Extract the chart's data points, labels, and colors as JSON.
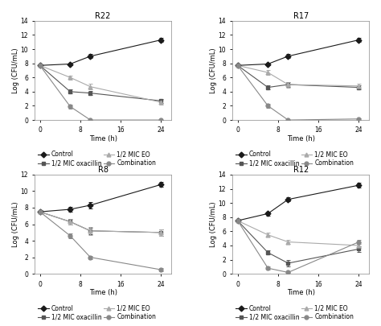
{
  "subplots": [
    {
      "title": "R22",
      "ylim": [
        0,
        14
      ],
      "yticks": [
        0,
        2,
        4,
        6,
        8,
        10,
        12,
        14
      ],
      "series": {
        "control": {
          "x": [
            0,
            6,
            10,
            24
          ],
          "y": [
            7.7,
            7.9,
            9.0,
            11.3
          ],
          "yerr": [
            0.2,
            0.2,
            0.3,
            0.25
          ]
        },
        "mic_eo": {
          "x": [
            0,
            6,
            10,
            24
          ],
          "y": [
            7.7,
            6.0,
            4.7,
            2.5
          ],
          "yerr": [
            0.2,
            0.3,
            0.4,
            0.3
          ]
        },
        "mic_oxacillin": {
          "x": [
            0,
            6,
            10,
            24
          ],
          "y": [
            7.7,
            4.0,
            3.8,
            2.7
          ],
          "yerr": [
            0.2,
            0.3,
            0.3,
            0.3
          ]
        },
        "combination": {
          "x": [
            0,
            6,
            10,
            24
          ],
          "y": [
            7.7,
            1.9,
            0.0,
            0.0
          ],
          "yerr": [
            0.2,
            0.3,
            0.05,
            0.0
          ]
        }
      }
    },
    {
      "title": "R17",
      "ylim": [
        0,
        14
      ],
      "yticks": [
        0,
        2,
        4,
        6,
        8,
        10,
        12,
        14
      ],
      "series": {
        "control": {
          "x": [
            0,
            6,
            10,
            24
          ],
          "y": [
            7.7,
            7.9,
            9.0,
            11.3
          ],
          "yerr": [
            0.2,
            0.2,
            0.3,
            0.3
          ]
        },
        "mic_eo": {
          "x": [
            0,
            6,
            10,
            24
          ],
          "y": [
            7.7,
            6.7,
            5.0,
            4.8
          ],
          "yerr": [
            0.2,
            0.3,
            0.4,
            0.3
          ]
        },
        "mic_oxacillin": {
          "x": [
            0,
            6,
            10,
            24
          ],
          "y": [
            7.7,
            4.6,
            5.0,
            4.6
          ],
          "yerr": [
            0.2,
            0.3,
            0.3,
            0.3
          ]
        },
        "combination": {
          "x": [
            0,
            6,
            10,
            24
          ],
          "y": [
            7.7,
            2.0,
            0.0,
            0.15
          ],
          "yerr": [
            0.2,
            0.3,
            0.05,
            0.1
          ]
        }
      }
    },
    {
      "title": "R8",
      "ylim": [
        0,
        12
      ],
      "yticks": [
        0,
        2,
        4,
        6,
        8,
        10,
        12
      ],
      "series": {
        "control": {
          "x": [
            0,
            6,
            10,
            24
          ],
          "y": [
            7.5,
            7.8,
            8.3,
            10.8
          ],
          "yerr": [
            0.2,
            0.3,
            0.4,
            0.3
          ]
        },
        "mic_eo": {
          "x": [
            0,
            6,
            10,
            24
          ],
          "y": [
            7.5,
            6.3,
            5.2,
            5.0
          ],
          "yerr": [
            0.2,
            0.3,
            0.5,
            0.4
          ]
        },
        "mic_oxacillin": {
          "x": [
            0,
            6,
            10,
            24
          ],
          "y": [
            7.5,
            6.3,
            5.2,
            5.0
          ],
          "yerr": [
            0.2,
            0.3,
            0.4,
            0.4
          ]
        },
        "combination": {
          "x": [
            0,
            6,
            10,
            24
          ],
          "y": [
            7.5,
            4.6,
            2.0,
            0.5
          ],
          "yerr": [
            0.2,
            0.3,
            0.2,
            0.2
          ]
        }
      }
    },
    {
      "title": "R12",
      "ylim": [
        0,
        14
      ],
      "yticks": [
        0,
        2,
        4,
        6,
        8,
        10,
        12,
        14
      ],
      "series": {
        "control": {
          "x": [
            0,
            6,
            10,
            24
          ],
          "y": [
            7.5,
            8.5,
            10.5,
            12.5
          ],
          "yerr": [
            0.2,
            0.3,
            0.3,
            0.3
          ]
        },
        "mic_eo": {
          "x": [
            0,
            6,
            10,
            24
          ],
          "y": [
            7.5,
            5.5,
            4.5,
            4.0
          ],
          "yerr": [
            0.2,
            0.3,
            0.3,
            0.4
          ]
        },
        "mic_oxacillin": {
          "x": [
            0,
            6,
            10,
            24
          ],
          "y": [
            7.5,
            3.0,
            1.5,
            3.5
          ],
          "yerr": [
            0.2,
            0.3,
            0.4,
            0.4
          ]
        },
        "combination": {
          "x": [
            0,
            6,
            10,
            24
          ],
          "y": [
            7.5,
            0.8,
            0.2,
            4.5
          ],
          "yerr": [
            0.2,
            0.2,
            0.1,
            0.3
          ]
        }
      }
    }
  ],
  "series_order": [
    "control",
    "mic_oxacillin",
    "mic_eo",
    "combination"
  ],
  "series_styles": {
    "control": {
      "color": "#1a1a1a",
      "marker": "D",
      "label": "Control"
    },
    "mic_eo": {
      "color": "#aaaaaa",
      "marker": "^",
      "label": "1/2 MIC EO"
    },
    "mic_oxacillin": {
      "color": "#555555",
      "marker": "s",
      "label": "1/2 MIC oxacillin"
    },
    "combination": {
      "color": "#888888",
      "marker": "o",
      "label": "Combination"
    }
  },
  "xlabel": "Time (h)",
  "ylabel": "Log (CFU/mL)",
  "xticks": [
    0,
    8,
    16,
    24
  ],
  "xlim": [
    -1,
    26
  ],
  "fontsize": 6.0,
  "title_fontsize": 7.0,
  "legend_fontsize": 5.5,
  "markersize": 3.5,
  "linewidth": 0.8
}
